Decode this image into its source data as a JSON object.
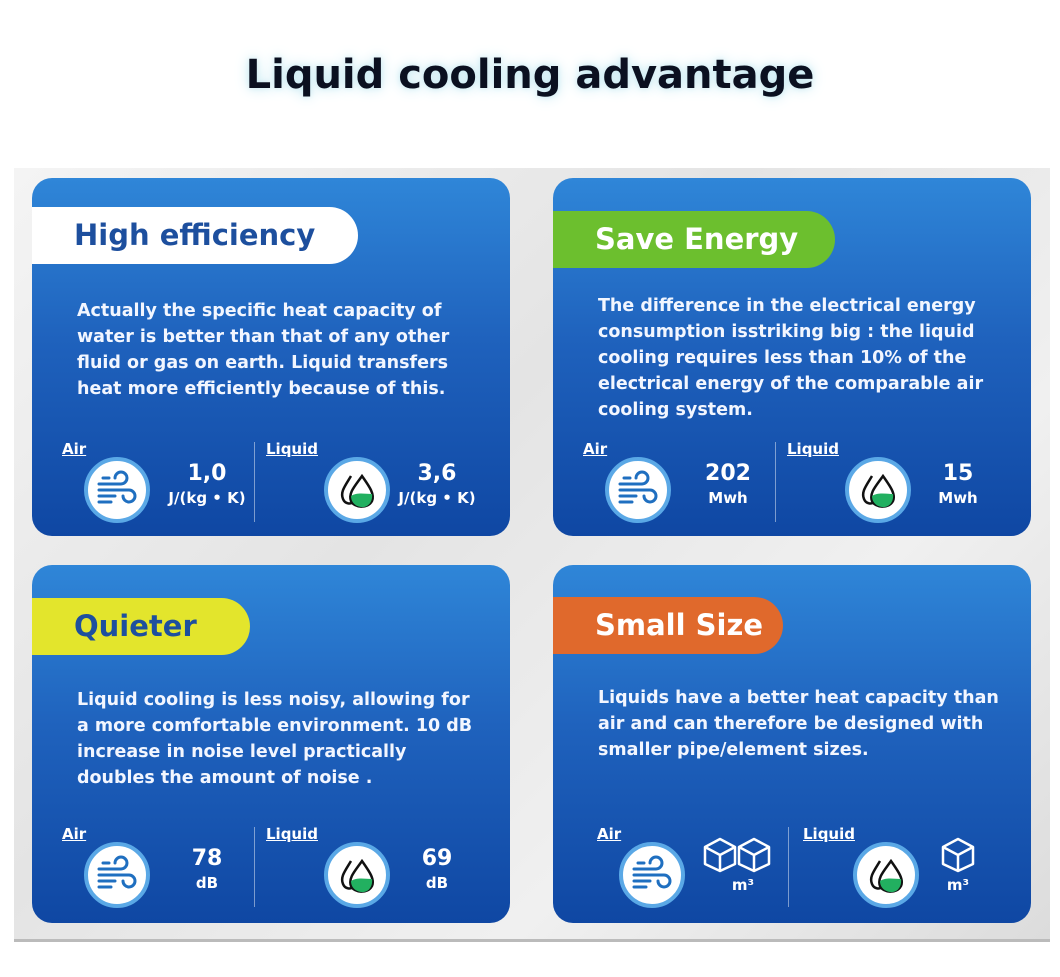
{
  "title": "Liquid cooling advantage",
  "cards": [
    {
      "heading": "High efficiency",
      "heading_color": "#ffffff",
      "heading_text_color": "#1d4f9e",
      "body": "Actually the specific heat capacity of water is better than that of any other fluid or gas on earth. Liquid transfers heat more efficiently because of this.",
      "air": {
        "label": "Air",
        "value": "1,0",
        "unit": "J/(kg • K)",
        "icon": "wind-icon"
      },
      "liquid": {
        "label": "Liquid",
        "value": "3,6",
        "unit": "J/(kg • K)",
        "icon": "water-drops-icon"
      }
    },
    {
      "heading": "Save Energy",
      "heading_color": "#6cbf2e",
      "heading_text_color": "#ffffff",
      "body": "The difference in the electrical energy consumption isstriking big : the liquid cooling requires less than 10% of the electrical energy of the comparable air cooling system.",
      "air": {
        "label": "Air",
        "value": "202",
        "unit": "Mwh",
        "icon": "wind-icon"
      },
      "liquid": {
        "label": "Liquid",
        "value": "15",
        "unit": "Mwh",
        "icon": "water-drops-icon"
      }
    },
    {
      "heading": "Quieter",
      "heading_color": "#e3e52c",
      "heading_text_color": "#1d4f9e",
      "body": "Liquid cooling is less noisy, allowing for a more comfortable environment. 10 dB increase in noise level practically doubles the amount of noise .",
      "air": {
        "label": "Air",
        "value": "78",
        "unit": "dB",
        "icon": "wind-icon"
      },
      "liquid": {
        "label": "Liquid",
        "value": "69",
        "unit": "dB",
        "icon": "water-drops-icon"
      }
    },
    {
      "heading": "Small Size",
      "heading_color": "#e0692c",
      "heading_text_color": "#ffffff",
      "body": "Liquids have a better heat capacity than air and can therefore be designed with smaller pipe/element sizes.",
      "air": {
        "label": "Air",
        "value": "",
        "unit": "m³",
        "icon": "two-cubes-icon"
      },
      "liquid": {
        "label": "Liquid",
        "value": "",
        "unit": "m³",
        "icon": "cube-icon"
      }
    }
  ]
}
